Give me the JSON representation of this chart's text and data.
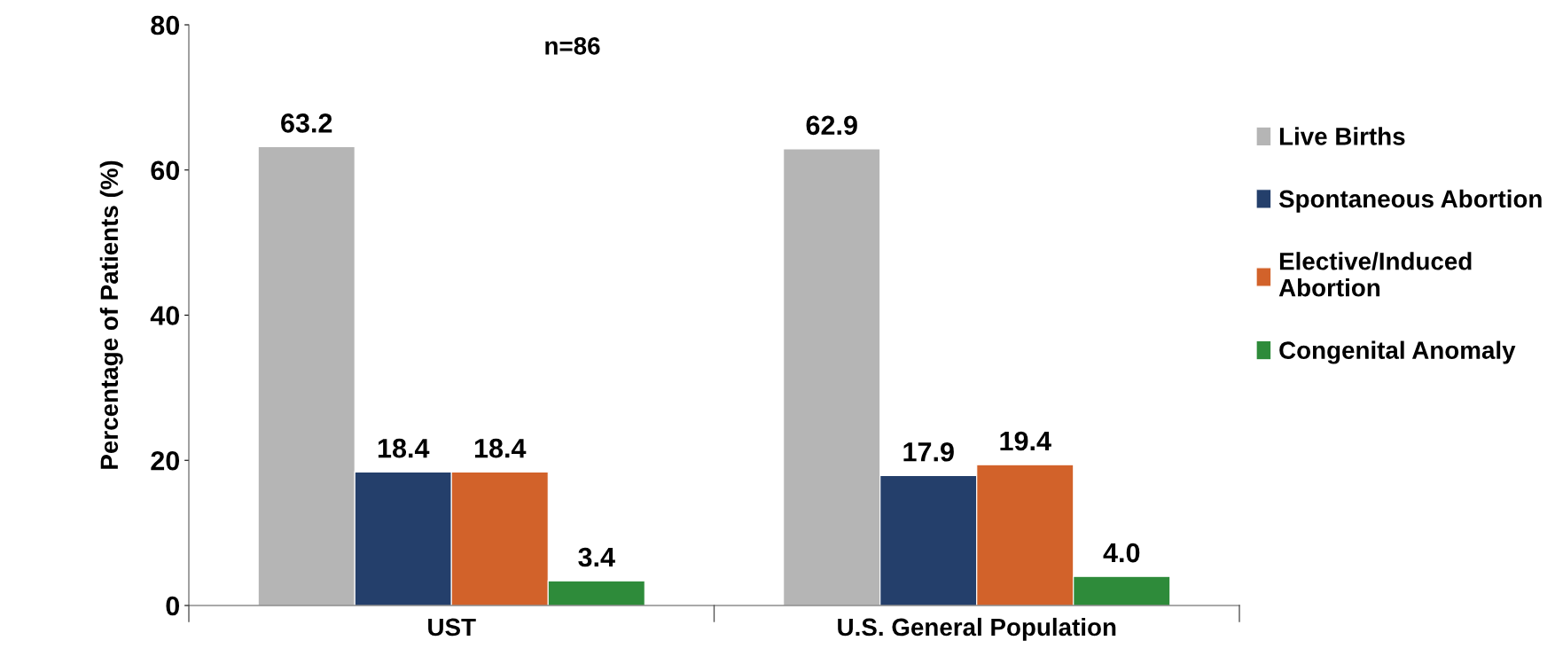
{
  "chart_data": {
    "type": "bar",
    "ylabel": "Percentage of Patients (%)",
    "categories": [
      "UST",
      "U.S. General Population"
    ],
    "series": [
      {
        "name": "Live Births",
        "color": "#b5b5b5",
        "values": [
          63.2,
          62.9
        ],
        "value_labels": [
          "63.2",
          "62.9"
        ]
      },
      {
        "name": "Spontaneous Abortion",
        "color": "#243f6b",
        "values": [
          18.4,
          17.9
        ],
        "value_labels": [
          "18.4",
          "17.9"
        ]
      },
      {
        "name": "Elective/Induced\nAbortion",
        "color": "#d2622a",
        "values": [
          18.4,
          19.4
        ],
        "value_labels": [
          "18.4",
          "19.4"
        ]
      },
      {
        "name": "Congenital Anomaly",
        "color": "#2e8b3a",
        "values": [
          3.4,
          4.0
        ],
        "value_labels": [
          "3.4",
          "4.0"
        ]
      }
    ],
    "ylim": [
      0,
      80
    ],
    "yticks": [
      0,
      20,
      40,
      60,
      80
    ],
    "annotations": [
      "n=86"
    ],
    "grid": false,
    "legend": "right"
  }
}
